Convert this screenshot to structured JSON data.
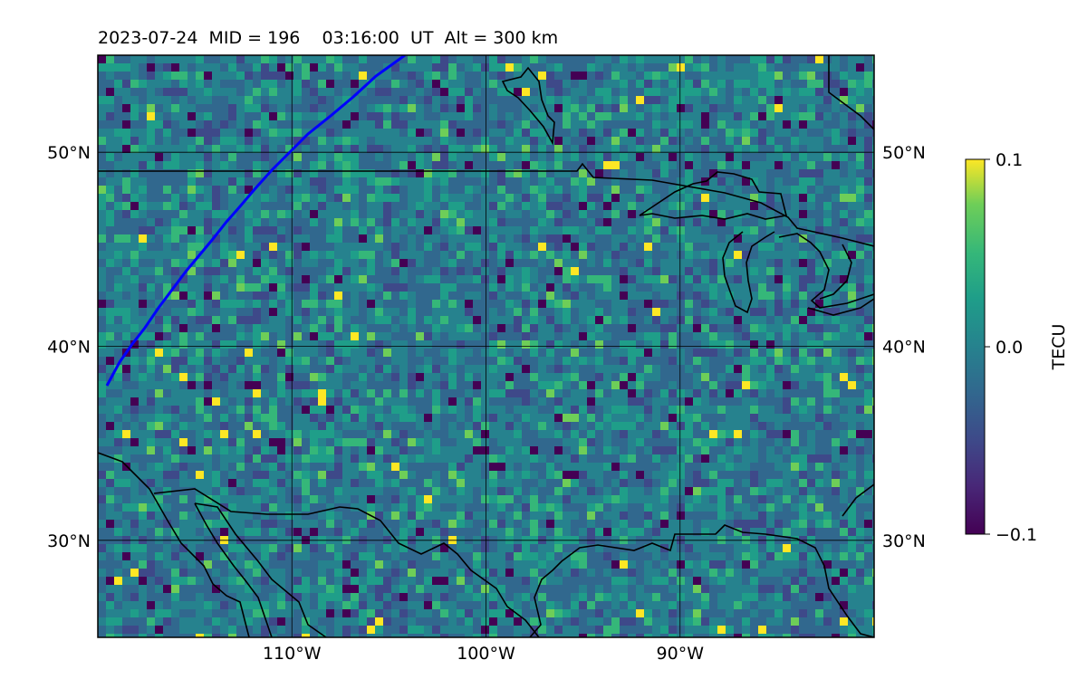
{
  "title": "2023-07-24  MID = 196    03:16:00  UT  Alt = 300 km",
  "map": {
    "lon_range": [
      -120,
      -80
    ],
    "lat_range": [
      25,
      55
    ],
    "grid_lons": [
      -110,
      -100,
      -90
    ],
    "grid_lats": [
      30,
      40,
      50
    ],
    "lon_labels": [
      "110°W",
      "100°W",
      "90°W"
    ],
    "lat_labels": [
      "30°N",
      "40°N",
      "50°N"
    ],
    "colormap": "viridis",
    "grid": true
  },
  "colorbar": {
    "label": "TECU",
    "ticks": [
      "0.1",
      "0.0",
      "−0.1"
    ],
    "range": [
      -0.1,
      0.1
    ]
  },
  "colors": {
    "track": "#0000ff",
    "coastline": "#000000",
    "grid": "#000000"
  }
}
